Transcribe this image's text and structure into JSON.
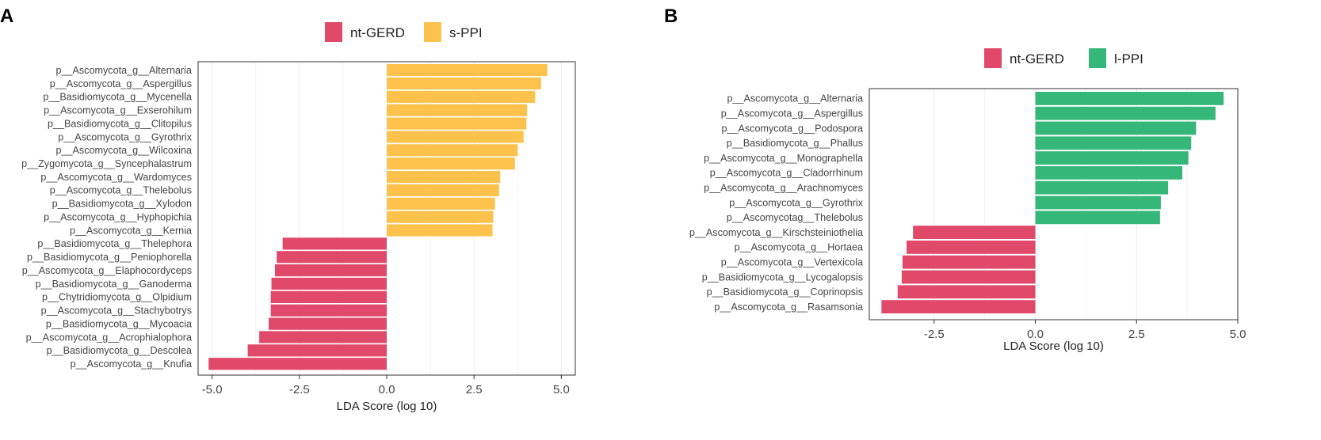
{
  "chart_data": [
    {
      "type": "bar",
      "orientation": "horizontal",
      "panel_label": "A",
      "xlabel": "LDA Score (log 10)",
      "xlim": [
        -5.4,
        5.4
      ],
      "xticks": [
        -5.0,
        -2.5,
        0.0,
        2.5,
        5.0
      ],
      "xtick_labels": [
        "-5.0",
        "-2.5",
        "0.0",
        "2.5",
        "5.0"
      ],
      "legend": [
        {
          "label": "nt-GERD",
          "color": "#e0496a"
        },
        {
          "label": "s-PPI",
          "color": "#fcc24c"
        }
      ],
      "legend_position": "top",
      "grid": true,
      "categories": [
        "p__Ascomycota_g__Alternaria",
        "p__Ascomycota_g__Aspergillus",
        "p__Basidiomycota_g__Mycenella",
        "p__Ascomycota_g__Exserohilum",
        "p__Basidiomycota_g__Clitopilus",
        "p__Ascomycota_g__Gyrothrix",
        "p__Ascomycota_g__Wilcoxina",
        "p__Zygomycota_g__Syncephalastrum",
        "p__Ascomycota_g__Wardomyces",
        "p__Ascomycota_g__Thelebolus",
        "p__Basidiomycota_g__Xylodon",
        "p__Ascomycota_g__Hyphopichia",
        "p__Ascomycota_g__Kernia",
        "p__Basidiomycota_g__Thelephora",
        "p__Basidiomycota_g__Peniophorella",
        "p__Ascomycota_g__Elaphocordyceps",
        "p__Basidiomycota_g__Ganoderma",
        "p__Chytridiomycota_g__Olpidium",
        "p__Ascomycota_g__Stachybotrys",
        "p__Basidiomycota_g__Mycoacia",
        "p__Ascomycota_g__Acrophialophora",
        "p__Basidiomycota_g__Descolea",
        "p__Ascomycota_g__Knufia"
      ],
      "values": [
        4.6,
        4.42,
        4.25,
        4.02,
        4.0,
        3.92,
        3.75,
        3.67,
        3.25,
        3.22,
        3.1,
        3.05,
        3.03,
        -2.98,
        -3.15,
        -3.2,
        -3.3,
        -3.32,
        -3.32,
        -3.38,
        -3.65,
        -3.98,
        -5.1
      ],
      "groups": [
        "s-PPI",
        "s-PPI",
        "s-PPI",
        "s-PPI",
        "s-PPI",
        "s-PPI",
        "s-PPI",
        "s-PPI",
        "s-PPI",
        "s-PPI",
        "s-PPI",
        "s-PPI",
        "s-PPI",
        "nt-GERD",
        "nt-GERD",
        "nt-GERD",
        "nt-GERD",
        "nt-GERD",
        "nt-GERD",
        "nt-GERD",
        "nt-GERD",
        "nt-GERD",
        "nt-GERD"
      ]
    },
    {
      "type": "bar",
      "orientation": "horizontal",
      "panel_label": "B",
      "xlabel": "LDA Score (log 10)",
      "xlim": [
        -4.1,
        5.0
      ],
      "xticks": [
        -2.5,
        0.0,
        2.5,
        5.0
      ],
      "xtick_labels": [
        "-2.5",
        "0.0",
        "2.5",
        "5.0"
      ],
      "legend": [
        {
          "label": "nt-GERD",
          "color": "#e0496a"
        },
        {
          "label": "l-PPI",
          "color": "#35b779"
        }
      ],
      "legend_position": "top",
      "grid": true,
      "categories": [
        "p__Ascomycota_g__Alternaria",
        "p__Ascomycota_g__Aspergillus",
        "p__Ascomycota_g__Podospora",
        "p__Basidiomycota_g__Phallus",
        "p__Ascomycota_g__Monographella",
        "p__Ascomycota_g__Cladorrhinum",
        "p__Ascomycota_g__Arachnomyces",
        "p__Ascomycota_g__Gyrothrix",
        "p__Ascomycotag__Thelebolus",
        "p__Ascomycota_g__Kirschsteiniothelia",
        "p__Ascomycota_g__Hortaea",
        "p__Ascomycota_g__Vertexicola",
        "p__Basidiomycota_g__Lycogalopsis",
        "p__Basidiomycota_g__Coprinopsis",
        "p__Ascomycota_g__Rasamsonia"
      ],
      "values": [
        4.65,
        4.45,
        3.97,
        3.85,
        3.78,
        3.63,
        3.28,
        3.1,
        3.08,
        -3.02,
        -3.18,
        -3.28,
        -3.3,
        -3.4,
        -3.8
      ],
      "groups": [
        "l-PPI",
        "l-PPI",
        "l-PPI",
        "l-PPI",
        "l-PPI",
        "l-PPI",
        "l-PPI",
        "l-PPI",
        "l-PPI",
        "nt-GERD",
        "nt-GERD",
        "nt-GERD",
        "nt-GERD",
        "nt-GERD",
        "nt-GERD"
      ]
    }
  ]
}
